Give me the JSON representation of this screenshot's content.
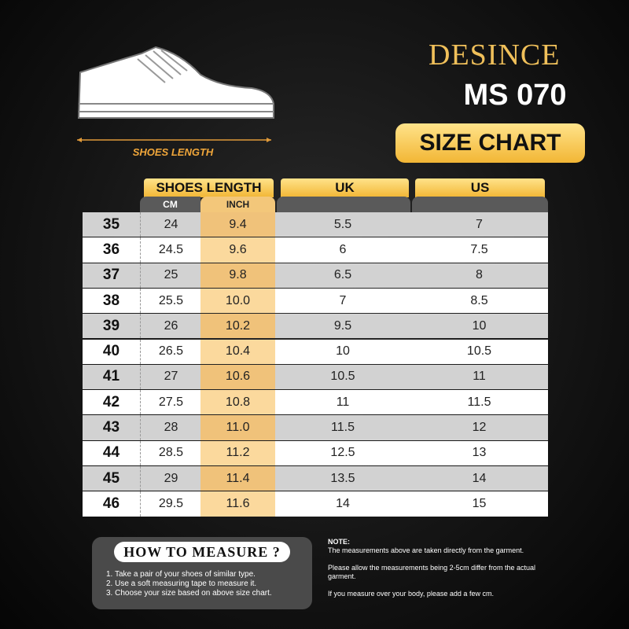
{
  "brand": "DESINCE",
  "model": "MS 070",
  "title": "SIZE CHART",
  "shoe_label": "SHOES LENGTH",
  "table": {
    "group_headers": [
      "SHOES LENGTH",
      "UK",
      "US"
    ],
    "sub_headers": [
      "CM",
      "INCH"
    ],
    "rows": [
      [
        "35",
        "24",
        "9.4",
        "5.5",
        "7"
      ],
      [
        "36",
        "24.5",
        "9.6",
        "6",
        "7.5"
      ],
      [
        "37",
        "25",
        "9.8",
        "6.5",
        "8"
      ],
      [
        "38",
        "25.5",
        "10.0",
        "7",
        "8.5"
      ],
      [
        "39",
        "26",
        "10.2",
        "9.5",
        "10"
      ],
      [
        "40",
        "26.5",
        "10.4",
        "10",
        "10.5"
      ],
      [
        "41",
        "27",
        "10.6",
        "10.5",
        "11"
      ],
      [
        "42",
        "27.5",
        "10.8",
        "11",
        "11.5"
      ],
      [
        "43",
        "28",
        "11.0",
        "11.5",
        "12"
      ],
      [
        "44",
        "28.5",
        "11.2",
        "12.5",
        "13"
      ],
      [
        "45",
        "29",
        "11.4",
        "13.5",
        "14"
      ],
      [
        "46",
        "29.5",
        "11.6",
        "14",
        "15"
      ]
    ]
  },
  "how_to_measure": {
    "title": "HOW TO MEASURE ?",
    "steps": [
      "1. Take a pair of your shoes of similar type.",
      "2. Use a soft measuring tape to measure it.",
      "3. Choose your size based on above size chart."
    ]
  },
  "note": {
    "label": "NOTE:",
    "paragraphs": [
      "The measurements above are taken directly from the garment.",
      "Please allow the measurements being 2-5cm differ from the actual garment.",
      "If you measure over your body, please add a few cm."
    ]
  }
}
